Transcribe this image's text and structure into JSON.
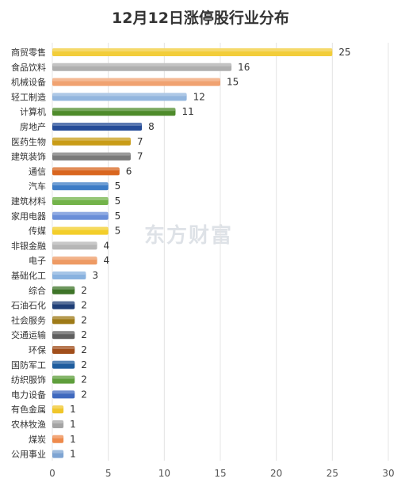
{
  "title": "12月12日涨停股行业分布",
  "watermark": "东方财富",
  "chart_data": {
    "type": "bar",
    "orientation": "horizontal",
    "title": "12月12日涨停股行业分布",
    "xlabel": "",
    "ylabel": "",
    "xlim": [
      0,
      30
    ],
    "xticks": [
      0,
      5,
      10,
      15,
      20,
      25,
      30
    ],
    "grid": true,
    "legend": "none",
    "categories": [
      "商贸零售",
      "食品饮料",
      "机械设备",
      "轻工制造",
      "计算机",
      "房地产",
      "医药生物",
      "建筑装饰",
      "通信",
      "汽车",
      "建筑材料",
      "家用电器",
      "传媒",
      "非银金融",
      "电子",
      "基础化工",
      "综合",
      "石油石化",
      "社会服务",
      "交通运输",
      "环保",
      "国防军工",
      "纺织服饰",
      "电力设备",
      "有色金属",
      "农林牧渔",
      "煤炭",
      "公用事业"
    ],
    "values": [
      25,
      16,
      15,
      12,
      11,
      8,
      7,
      7,
      6,
      5,
      5,
      5,
      5,
      4,
      4,
      3,
      2,
      2,
      2,
      2,
      2,
      2,
      2,
      2,
      1,
      1,
      1,
      1
    ],
    "colors": [
      "#F2CD3A",
      "#AFAFAF",
      "#F0A271",
      "#93B6DE",
      "#4E8B2B",
      "#254C98",
      "#C99C17",
      "#7A7A7A",
      "#D9661F",
      "#3D7CC6",
      "#73B34A",
      "#6A8ED8",
      "#F3CE2A",
      "#B6B6B6",
      "#EE9A63",
      "#89B2DF",
      "#3E7428",
      "#1E3E76",
      "#9E7A17",
      "#5F5F5F",
      "#A14E1B",
      "#1F5D9E",
      "#5E9E3B",
      "#3F69BE",
      "#F0C62A",
      "#A4A4A4",
      "#EE8A4C",
      "#7EA4D2"
    ]
  }
}
